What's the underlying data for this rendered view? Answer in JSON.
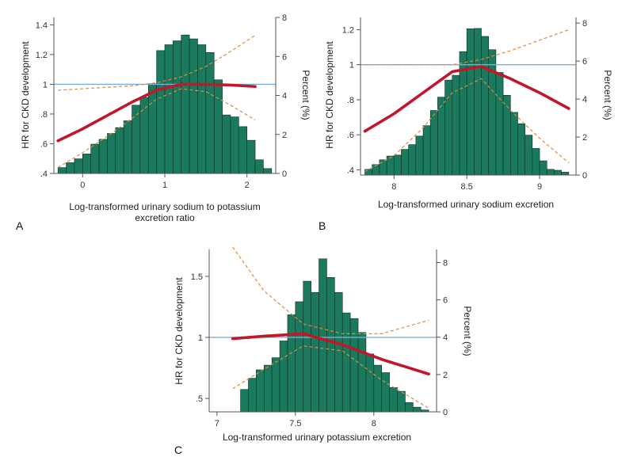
{
  "colors": {
    "bar": "#1b7a5e",
    "bar_edge": "#0b2e22",
    "hr_line": "#c0182a",
    "ci_line": "#e08a3c",
    "ref_line": "#7aaedc",
    "axis": "#555555"
  },
  "chart_data": [
    {
      "type": "bar",
      "panel_label": "A",
      "xlabel": "Log-transformed urinary sodium to potassium excretion ratio",
      "ylabel_left": "HR for CKD development",
      "ylabel_right": "Percent (%)",
      "xlim": [
        -0.35,
        2.35
      ],
      "ylim_left": [
        0.4,
        1.45
      ],
      "ylim_right": [
        0,
        8
      ],
      "x_ticks": [
        0,
        1,
        2
      ],
      "x_tick_labels": [
        "0",
        "1",
        "2"
      ],
      "y_left_ticks": [
        0.4,
        0.6,
        0.8,
        1.0,
        1.2,
        1.4
      ],
      "y_left_tick_labels": [
        ".4",
        ".6",
        ".8",
        "1",
        "1.2",
        "1.4"
      ],
      "y_right_ticks": [
        0,
        2,
        4,
        6,
        8
      ],
      "y_right_tick_labels": [
        "0",
        "2",
        "4",
        "6",
        "8"
      ],
      "bin_width": 0.1,
      "histogram": {
        "bin_start": [
          -0.3,
          -0.2,
          -0.1,
          0.0,
          0.1,
          0.2,
          0.3,
          0.4,
          0.5,
          0.6,
          0.7,
          0.8,
          0.9,
          1.0,
          1.1,
          1.2,
          1.3,
          1.4,
          1.5,
          1.6,
          1.7,
          1.8,
          1.9,
          2.0,
          2.1,
          2.2
        ],
        "percent": [
          0.3,
          0.55,
          0.75,
          1.0,
          1.5,
          1.75,
          2.05,
          2.35,
          2.7,
          3.5,
          3.9,
          4.6,
          6.3,
          6.6,
          6.8,
          7.1,
          6.9,
          6.6,
          6.2,
          4.8,
          3.0,
          2.9,
          2.4,
          1.7,
          0.7,
          0.25
        ]
      },
      "hr_curve": {
        "x": [
          -0.3,
          0,
          0.3,
          0.6,
          0.9,
          1.2,
          1.5,
          1.8,
          2.1
        ],
        "y": [
          0.62,
          0.7,
          0.79,
          0.88,
          0.96,
          1.0,
          1.0,
          0.995,
          0.985
        ]
      },
      "ci_lower": {
        "x": [
          -0.3,
          0,
          0.3,
          0.6,
          0.9,
          1.2,
          1.5,
          1.8,
          2.1
        ],
        "y": [
          0.44,
          0.54,
          0.65,
          0.77,
          0.9,
          0.97,
          0.95,
          0.86,
          0.76
        ]
      },
      "ci_upper": {
        "x": [
          -0.3,
          0,
          0.3,
          0.6,
          0.9,
          1.2,
          1.5,
          1.8,
          2.1
        ],
        "y": [
          0.96,
          0.97,
          0.98,
          0.99,
          1.01,
          1.05,
          1.12,
          1.22,
          1.33
        ]
      },
      "reference_line": 1
    },
    {
      "type": "bar",
      "panel_label": "B",
      "xlabel": "Log-transformed urinary sodium excretion",
      "ylabel_left": "HR for CKD development",
      "ylabel_right": "Percent (%)",
      "xlim": [
        7.77,
        9.25
      ],
      "ylim_left": [
        0.37,
        1.27
      ],
      "ylim_right": [
        0,
        8.3
      ],
      "x_ticks": [
        8,
        8.5,
        9
      ],
      "x_tick_labels": [
        "8",
        "8.5",
        "9"
      ],
      "y_left_ticks": [
        0.4,
        0.6,
        0.8,
        1.0,
        1.2
      ],
      "y_left_tick_labels": [
        ".4",
        ".6",
        ".8",
        "1",
        "1.2"
      ],
      "y_right_ticks": [
        0,
        2,
        4,
        6,
        8
      ],
      "y_right_tick_labels": [
        "0",
        "2",
        "4",
        "6",
        "8"
      ],
      "bin_width": 0.05,
      "histogram": {
        "bin_start": [
          7.8,
          7.85,
          7.9,
          7.95,
          8.0,
          8.05,
          8.1,
          8.15,
          8.2,
          8.25,
          8.3,
          8.35,
          8.4,
          8.45,
          8.5,
          8.55,
          8.6,
          8.65,
          8.7,
          8.75,
          8.8,
          8.85,
          8.9,
          8.95,
          9.0,
          9.05,
          9.1,
          9.15
        ],
        "percent": [
          0.3,
          0.55,
          0.8,
          1.0,
          1.05,
          1.35,
          1.6,
          2.05,
          2.6,
          3.4,
          4.1,
          5.0,
          5.25,
          6.5,
          7.7,
          7.72,
          7.3,
          6.6,
          5.4,
          4.2,
          3.3,
          2.7,
          2.1,
          1.4,
          0.75,
          0.3,
          0.25,
          0.15
        ]
      },
      "hr_curve": {
        "x": [
          7.8,
          8.0,
          8.2,
          8.4,
          8.6,
          8.8,
          9.0,
          9.2
        ],
        "y": [
          0.62,
          0.72,
          0.84,
          0.96,
          0.99,
          0.92,
          0.84,
          0.75
        ]
      },
      "ci_lower": {
        "x": [
          7.8,
          8.0,
          8.2,
          8.4,
          8.6,
          8.8,
          9.0,
          9.2
        ],
        "y": [
          0.39,
          0.48,
          0.64,
          0.84,
          0.92,
          0.74,
          0.58,
          0.44
        ]
      },
      "ci_upper": {
        "x": [
          7.8,
          8.0,
          8.2,
          8.4,
          8.6,
          8.8,
          9.0,
          9.2
        ],
        "y": [
          1.0,
          1.0,
          1.0,
          1.0,
          1.03,
          1.08,
          1.14,
          1.2
        ]
      },
      "reference_line": 1
    },
    {
      "type": "bar",
      "panel_label": "C",
      "xlabel": "Log-transformed urinary potassium excretion",
      "ylabel_left": "HR for CKD development",
      "ylabel_right": "Percent (%)",
      "xlim": [
        6.95,
        8.4
      ],
      "ylim_left": [
        0.39,
        1.72
      ],
      "ylim_right": [
        0,
        8.7
      ],
      "x_ticks": [
        7,
        7.5,
        8
      ],
      "x_tick_labels": [
        "7",
        "7.5",
        "8"
      ],
      "y_left_ticks": [
        0.5,
        1.0,
        1.5
      ],
      "y_left_tick_labels": [
        ".5",
        "1",
        "1.5"
      ],
      "y_right_ticks": [
        0,
        2,
        4,
        6,
        8
      ],
      "y_right_tick_labels": [
        "0",
        "2",
        "4",
        "6",
        "8"
      ],
      "bin_width": 0.05,
      "histogram": {
        "bin_start": [
          7.15,
          7.2,
          7.25,
          7.3,
          7.35,
          7.4,
          7.45,
          7.5,
          7.55,
          7.6,
          7.65,
          7.7,
          7.75,
          7.8,
          7.85,
          7.9,
          7.95,
          8.0,
          8.05,
          8.1,
          8.15,
          8.2,
          8.25,
          8.3
        ],
        "percent": [
          1.2,
          1.8,
          2.25,
          2.5,
          2.9,
          3.8,
          5.2,
          5.9,
          7.0,
          6.4,
          8.2,
          7.2,
          6.4,
          5.3,
          5.0,
          4.25,
          3.1,
          2.5,
          2.1,
          1.3,
          1.1,
          0.5,
          0.25,
          0.1
        ]
      },
      "hr_curve": {
        "x": [
          7.1,
          7.3,
          7.55,
          7.8,
          8.05,
          8.35
        ],
        "y": [
          0.99,
          1.01,
          1.03,
          0.94,
          0.82,
          0.7
        ]
      },
      "ci_lower": {
        "x": [
          7.1,
          7.3,
          7.55,
          7.8,
          8.05,
          8.35
        ],
        "y": [
          0.58,
          0.74,
          0.93,
          0.89,
          0.65,
          0.42
        ]
      },
      "ci_upper": {
        "x": [
          7.1,
          7.3,
          7.55,
          7.8,
          8.05,
          8.35
        ],
        "y": [
          1.74,
          1.38,
          1.11,
          1.03,
          1.03,
          1.14
        ]
      },
      "reference_line": 1
    }
  ]
}
